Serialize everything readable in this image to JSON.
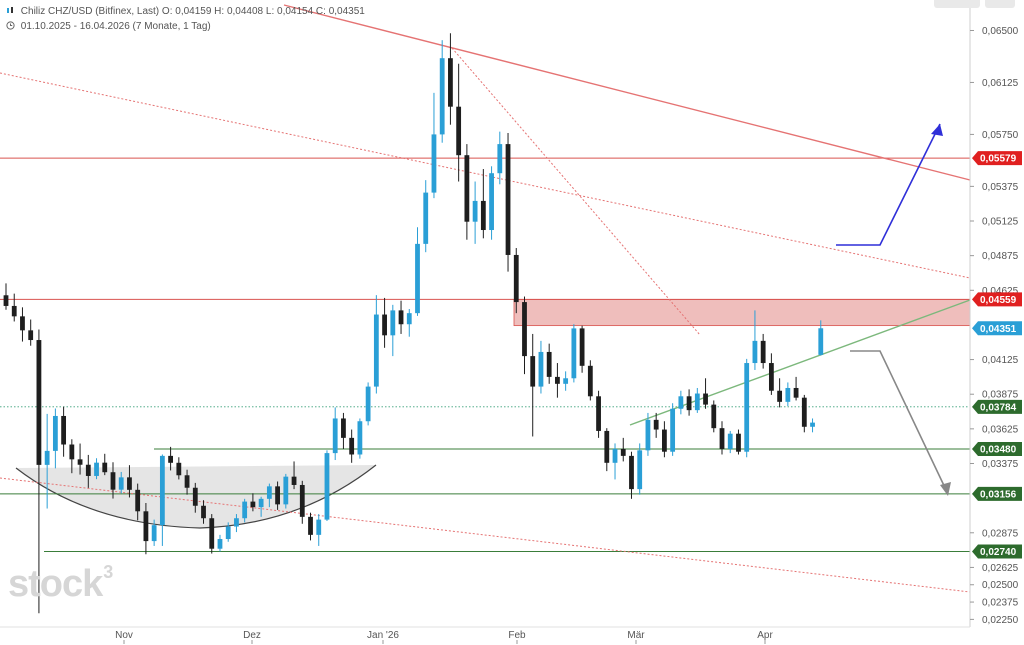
{
  "header": {
    "instrument": "Chiliz CHZ/USD (Bitfinex, Last)",
    "ohlc": "O: 0,04159  H: 0,04408  L: 0,04154  C: 0,04351",
    "range": "01.10.2025 - 16.04.2026",
    "period": "(7 Monate, 1 Tag)"
  },
  "watermark": {
    "text": "stock",
    "sup": "3"
  },
  "chart_data": {
    "type": "candlestick",
    "x_labels": [
      "Nov",
      "Dez",
      "Jan '26",
      "Feb",
      "Mär",
      "Apr"
    ],
    "y_ticks": [
      "0,06500",
      "0,06125",
      "0,05750",
      "0,05375",
      "0,05125",
      "0,04875",
      "0,04625",
      "0,04125",
      "0,03875",
      "0,03625",
      "0,03375",
      "0,02875",
      "0,02625",
      "0,02500",
      "0,02375",
      "0,02250"
    ],
    "y_tick_values": [
      0.065,
      0.06125,
      0.0575,
      0.05375,
      0.05125,
      0.04875,
      0.04625,
      0.04125,
      0.03875,
      0.03625,
      0.03375,
      0.02875,
      0.02625,
      0.025,
      0.02375,
      0.0225
    ],
    "ylim": [
      0.02195,
      0.0672
    ],
    "grid": false,
    "colors": {
      "up": "#2a9fd6",
      "down": "#1e1e1e",
      "resistance": "#d9534f",
      "support": "#3a7d3a",
      "current": "#2a9fd6",
      "arrow_up": "#2f2fd8",
      "arrow_down": "#888888"
    },
    "price_labels": [
      {
        "value": 0.05579,
        "text": "0,05579",
        "kind": "resistance"
      },
      {
        "value": 0.04559,
        "text": "0,04559",
        "kind": "resistance"
      },
      {
        "value": 0.04351,
        "text": "0,04351",
        "kind": "current"
      },
      {
        "value": 0.03784,
        "text": "0,03784",
        "kind": "support"
      },
      {
        "value": 0.0348,
        "text": "0,03480",
        "kind": "support"
      },
      {
        "value": 0.03156,
        "text": "0,03156",
        "kind": "support"
      },
      {
        "value": 0.0274,
        "text": "0,02740",
        "kind": "support"
      }
    ],
    "resistance_zone": [
      0.0437,
      0.04559
    ],
    "candles": [
      [
        0.04589,
        0.04675,
        0.04485,
        0.04512
      ],
      [
        0.04512,
        0.04601,
        0.044,
        0.04437
      ],
      [
        0.04437,
        0.04502,
        0.04255,
        0.04336
      ],
      [
        0.04336,
        0.04414,
        0.04225,
        0.04266
      ],
      [
        0.04266,
        0.04342,
        0.02294,
        0.03365
      ],
      [
        0.03365,
        0.03733,
        0.0305,
        0.03466
      ],
      [
        0.03466,
        0.03772,
        0.0334,
        0.03718
      ],
      [
        0.03718,
        0.03785,
        0.03424,
        0.03512
      ],
      [
        0.03512,
        0.0355,
        0.03305,
        0.03405
      ],
      [
        0.03405,
        0.03519,
        0.03295,
        0.03366
      ],
      [
        0.03366,
        0.03437,
        0.03199,
        0.03285
      ],
      [
        0.03285,
        0.03413,
        0.03262,
        0.03381
      ],
      [
        0.03381,
        0.03445,
        0.03291,
        0.03312
      ],
      [
        0.03312,
        0.03384,
        0.03122,
        0.03186
      ],
      [
        0.03186,
        0.03314,
        0.0316,
        0.03275
      ],
      [
        0.03275,
        0.03363,
        0.0313,
        0.03185
      ],
      [
        0.03185,
        0.0323,
        0.02965,
        0.0303
      ],
      [
        0.0303,
        0.0309,
        0.0272,
        0.02815
      ],
      [
        0.02815,
        0.0297,
        0.0278,
        0.0293
      ],
      [
        0.0293,
        0.0344,
        0.0278,
        0.0343
      ],
      [
        0.0343,
        0.03495,
        0.03325,
        0.0338
      ],
      [
        0.0338,
        0.0342,
        0.0326,
        0.0329
      ],
      [
        0.0329,
        0.0333,
        0.0315,
        0.032
      ],
      [
        0.032,
        0.03235,
        0.0302,
        0.0307
      ],
      [
        0.0307,
        0.0311,
        0.0294,
        0.0298
      ],
      [
        0.0298,
        0.0301,
        0.02725,
        0.0276
      ],
      [
        0.0276,
        0.0286,
        0.0274,
        0.0283
      ],
      [
        0.0283,
        0.0295,
        0.0281,
        0.0292
      ],
      [
        0.0292,
        0.0301,
        0.0288,
        0.0298
      ],
      [
        0.0298,
        0.0312,
        0.0295,
        0.031
      ],
      [
        0.031,
        0.0316,
        0.0303,
        0.0306
      ],
      [
        0.0306,
        0.03135,
        0.0299,
        0.0312
      ],
      [
        0.0312,
        0.0323,
        0.0306,
        0.0321
      ],
      [
        0.0321,
        0.03245,
        0.0304,
        0.0308
      ],
      [
        0.0308,
        0.033,
        0.0305,
        0.0328
      ],
      [
        0.0328,
        0.0339,
        0.0319,
        0.0322
      ],
      [
        0.0322,
        0.0325,
        0.0294,
        0.0299
      ],
      [
        0.0299,
        0.0302,
        0.0282,
        0.0286
      ],
      [
        0.0286,
        0.0301,
        0.0278,
        0.0297
      ],
      [
        0.0297,
        0.0347,
        0.0296,
        0.0345
      ],
      [
        0.0345,
        0.0378,
        0.034,
        0.037
      ],
      [
        0.037,
        0.0374,
        0.0348,
        0.0356
      ],
      [
        0.0356,
        0.0362,
        0.0338,
        0.0344
      ],
      [
        0.0344,
        0.037,
        0.0341,
        0.0368
      ],
      [
        0.0368,
        0.0396,
        0.0365,
        0.0393
      ],
      [
        0.0393,
        0.0459,
        0.0388,
        0.0445
      ],
      [
        0.0445,
        0.0457,
        0.0421,
        0.043
      ],
      [
        0.043,
        0.0452,
        0.0415,
        0.0448
      ],
      [
        0.0448,
        0.0455,
        0.0431,
        0.0438
      ],
      [
        0.0438,
        0.0449,
        0.0429,
        0.0446
      ],
      [
        0.0446,
        0.0508,
        0.0444,
        0.0496
      ],
      [
        0.0496,
        0.0542,
        0.049,
        0.0533
      ],
      [
        0.0533,
        0.0605,
        0.0529,
        0.0575
      ],
      [
        0.0575,
        0.0643,
        0.0569,
        0.063
      ],
      [
        0.063,
        0.0648,
        0.0582,
        0.0595
      ],
      [
        0.0595,
        0.0626,
        0.0541,
        0.056
      ],
      [
        0.056,
        0.0568,
        0.0499,
        0.0512
      ],
      [
        0.0512,
        0.0541,
        0.0496,
        0.0527
      ],
      [
        0.0527,
        0.055,
        0.05,
        0.0506
      ],
      [
        0.0506,
        0.0552,
        0.0499,
        0.0547
      ],
      [
        0.0547,
        0.0577,
        0.0539,
        0.0568
      ],
      [
        0.0568,
        0.0576,
        0.0476,
        0.0488
      ],
      [
        0.0488,
        0.0493,
        0.0446,
        0.0454
      ],
      [
        0.0454,
        0.0458,
        0.0402,
        0.0415
      ],
      [
        0.0415,
        0.0431,
        0.0357,
        0.0393
      ],
      [
        0.0393,
        0.0426,
        0.0388,
        0.0418
      ],
      [
        0.0418,
        0.0424,
        0.0395,
        0.04
      ],
      [
        0.04,
        0.041,
        0.0385,
        0.0395
      ],
      [
        0.0395,
        0.0404,
        0.039,
        0.0399
      ],
      [
        0.0399,
        0.0438,
        0.0396,
        0.0435
      ],
      [
        0.0435,
        0.0437,
        0.0403,
        0.0408
      ],
      [
        0.0408,
        0.0412,
        0.0383,
        0.0386
      ],
      [
        0.0386,
        0.039,
        0.0356,
        0.0361
      ],
      [
        0.0361,
        0.0363,
        0.0332,
        0.0338
      ],
      [
        0.0338,
        0.0352,
        0.0326,
        0.0348
      ],
      [
        0.0348,
        0.0356,
        0.0339,
        0.0343
      ],
      [
        0.0343,
        0.0346,
        0.0312,
        0.0319
      ],
      [
        0.0319,
        0.0352,
        0.0315,
        0.0347
      ],
      [
        0.0347,
        0.0374,
        0.0343,
        0.0369
      ],
      [
        0.0369,
        0.0374,
        0.0356,
        0.0362
      ],
      [
        0.0362,
        0.0368,
        0.0342,
        0.0346
      ],
      [
        0.0346,
        0.0381,
        0.0343,
        0.0377
      ],
      [
        0.0377,
        0.039,
        0.0373,
        0.0386
      ],
      [
        0.0386,
        0.0391,
        0.0372,
        0.0376
      ],
      [
        0.0376,
        0.0392,
        0.0374,
        0.0388
      ],
      [
        0.0388,
        0.0399,
        0.0377,
        0.038
      ],
      [
        0.038,
        0.0383,
        0.036,
        0.0363
      ],
      [
        0.0363,
        0.0368,
        0.0344,
        0.0348
      ],
      [
        0.0348,
        0.0361,
        0.0345,
        0.0359
      ],
      [
        0.0359,
        0.0362,
        0.0344,
        0.0346
      ],
      [
        0.0346,
        0.0413,
        0.0342,
        0.041
      ],
      [
        0.041,
        0.0448,
        0.0405,
        0.0426
      ],
      [
        0.0426,
        0.0431,
        0.0406,
        0.041
      ],
      [
        0.041,
        0.0417,
        0.0387,
        0.039
      ],
      [
        0.039,
        0.0399,
        0.0378,
        0.0382
      ],
      [
        0.0382,
        0.0396,
        0.0379,
        0.0392
      ],
      [
        0.0392,
        0.04,
        0.0383,
        0.0385
      ],
      [
        0.0385,
        0.0387,
        0.036,
        0.0364
      ],
      [
        0.0364,
        0.037,
        0.036,
        0.0367
      ],
      [
        0.04159,
        0.04408,
        0.04154,
        0.04351
      ]
    ]
  }
}
